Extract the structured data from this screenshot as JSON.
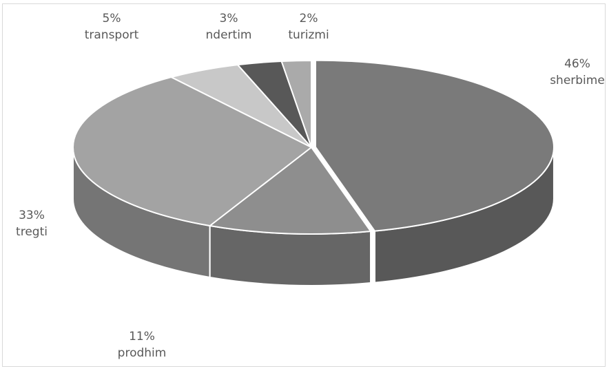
{
  "chart_data": {
    "type": "pie",
    "title": "",
    "style": "3d",
    "legend": "none",
    "slices": [
      {
        "category": "sherbime",
        "value": 46,
        "label": "46%",
        "color": "#7a7a7a"
      },
      {
        "category": "prodhim",
        "value": 11,
        "label": "11%",
        "color": "#8e8e8e"
      },
      {
        "category": "tregti",
        "value": 33,
        "label": "33%",
        "color": "#a3a3a3"
      },
      {
        "category": "transport",
        "value": 5,
        "label": "5%",
        "color": "#c8c8c8"
      },
      {
        "category": "ndertim",
        "value": 3,
        "label": "3%",
        "color": "#585858"
      },
      {
        "category": "turizmi",
        "value": 2,
        "label": "2%",
        "color": "#aaaaaa"
      }
    ]
  }
}
